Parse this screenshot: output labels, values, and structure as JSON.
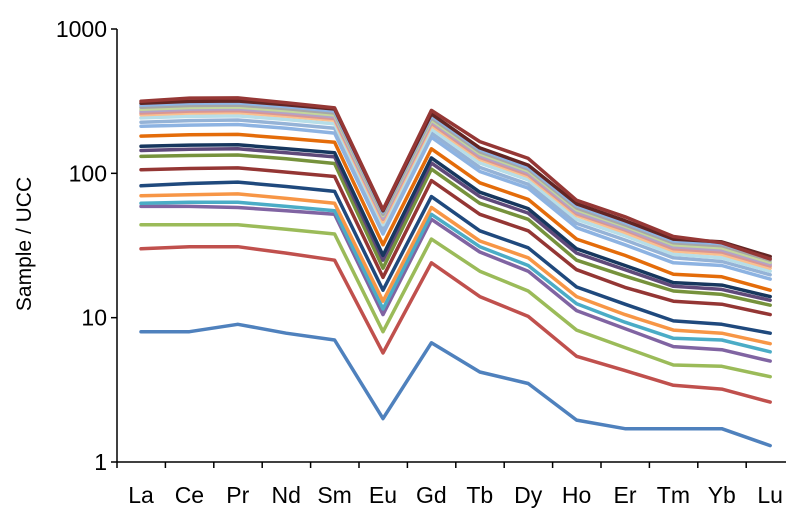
{
  "chart_data": {
    "type": "line",
    "ylabel": "Sample  / UCC",
    "xlabel": "",
    "y_scale": "log",
    "ylim": [
      1,
      1000
    ],
    "y_ticks": [
      "1",
      "10",
      "100",
      "1000"
    ],
    "categories": [
      "La",
      "Ce",
      "Pr",
      "Nd",
      "Sm",
      "Eu",
      "Gd",
      "Tb",
      "Dy",
      "Ho",
      "Er",
      "Tm",
      "Yb",
      "Lu"
    ],
    "grid": false,
    "series": [
      {
        "color": "#4f81bd",
        "values": [
          8.0,
          8.0,
          9.0,
          7.8,
          7.0,
          2.0,
          6.7,
          4.2,
          3.5,
          1.95,
          1.7,
          1.7,
          1.7,
          1.3
        ]
      },
      {
        "color": "#c0504d",
        "values": [
          30,
          31,
          31,
          28,
          25,
          5.7,
          24,
          14,
          10.2,
          5.4,
          4.3,
          3.4,
          3.2,
          2.6
        ]
      },
      {
        "color": "#9bbb59",
        "values": [
          44,
          44,
          44,
          41,
          38,
          8.0,
          35,
          21,
          15.3,
          8.2,
          6.2,
          4.7,
          4.6,
          3.9
        ]
      },
      {
        "color": "#8064a2",
        "values": [
          59,
          59,
          58,
          55,
          52,
          10.5,
          48,
          28.5,
          21,
          11.2,
          8.4,
          6.3,
          6.0,
          5.0
        ]
      },
      {
        "color": "#4bacc6",
        "values": [
          62,
          63,
          63,
          59,
          55,
          11.5,
          52,
          31,
          23,
          12.5,
          9.3,
          7.2,
          7.0,
          5.8
        ]
      },
      {
        "color": "#f79646",
        "values": [
          70,
          71,
          72,
          67,
          62,
          13,
          58,
          34,
          26,
          14,
          10.5,
          8.2,
          7.8,
          6.6
        ]
      },
      {
        "color": "#1f497d",
        "values": [
          82,
          85,
          87,
          81,
          75,
          15.5,
          69,
          40,
          30.5,
          16.3,
          12.4,
          9.5,
          9.0,
          7.8
        ]
      },
      {
        "color": "#943634",
        "values": [
          106,
          108,
          109,
          102,
          95,
          19,
          89,
          52,
          40,
          21.5,
          16.2,
          13.0,
          12.4,
          10.5
        ]
      },
      {
        "color": "#76923c",
        "values": [
          131,
          133,
          134,
          126,
          117,
          22,
          107,
          62,
          48,
          25,
          19.4,
          15.3,
          14.5,
          12.2
        ]
      },
      {
        "color": "#5f497a",
        "values": [
          144,
          147,
          148,
          139,
          130,
          25,
          118,
          69,
          53,
          28,
          21.5,
          16.5,
          15.7,
          13.2
        ]
      },
      {
        "color": "#17375e",
        "values": [
          154,
          157,
          158,
          148,
          139,
          27,
          128,
          74,
          57,
          30,
          23,
          17.5,
          16.8,
          14.0
        ]
      },
      {
        "color": "#e46c0a",
        "values": [
          181,
          185,
          186,
          175,
          164,
          32,
          148,
          86,
          66,
          35,
          27,
          20,
          19.2,
          15.5
        ]
      },
      {
        "color": "#8db3e2",
        "values": [
          212,
          216,
          218,
          205,
          190,
          38,
          178,
          103,
          79,
          42,
          32,
          24,
          23,
          18.5
        ]
      },
      {
        "color": "#95b3d7",
        "values": [
          226,
          232,
          234,
          220,
          205,
          41,
          190,
          110,
          84,
          45,
          34.5,
          26,
          24.5,
          19.8
        ]
      },
      {
        "color": "#b7dee8",
        "values": [
          242,
          248,
          250,
          236,
          220,
          44,
          203,
          118,
          90,
          48,
          37,
          27.5,
          26,
          21
        ]
      },
      {
        "color": "#fac08f",
        "values": [
          255,
          262,
          264,
          249,
          233,
          46,
          215,
          125,
          95,
          51,
          39,
          29,
          27.5,
          22
        ]
      },
      {
        "color": "#d99694",
        "values": [
          262,
          270,
          272,
          257,
          240,
          48,
          222,
          129,
          98,
          52.5,
          40.5,
          30,
          28.5,
          22.8
        ]
      },
      {
        "color": "#b3a2c7",
        "values": [
          270,
          278,
          280,
          264,
          247,
          49,
          229,
          133,
          101,
          54,
          41.5,
          31,
          29.5,
          23.5
        ]
      },
      {
        "color": "#c3d69b",
        "values": [
          278,
          286,
          288,
          272,
          254,
          51,
          235,
          137,
          104,
          56,
          43,
          32,
          30.5,
          24.2
        ]
      },
      {
        "color": "#a6a6a6",
        "values": [
          287,
          295,
          297,
          281,
          262,
          52,
          242,
          141,
          107,
          57.5,
          44,
          33,
          31.5,
          25
        ]
      },
      {
        "color": "#8eb4e3",
        "values": [
          296,
          305,
          307,
          290,
          270,
          54,
          250,
          146,
          110,
          59.5,
          45.5,
          34,
          32.5,
          25.8
        ]
      },
      {
        "color": "#632523",
        "values": [
          306,
          315,
          317,
          299,
          279,
          55,
          258,
          150,
          114,
          61.5,
          47,
          35,
          33.5,
          26.5
        ]
      },
      {
        "color": "#953735",
        "values": [
          316,
          332,
          333,
          308,
          284,
          56,
          273,
          166,
          127,
          65,
          50,
          36.5,
          33,
          25.5
        ]
      }
    ]
  }
}
